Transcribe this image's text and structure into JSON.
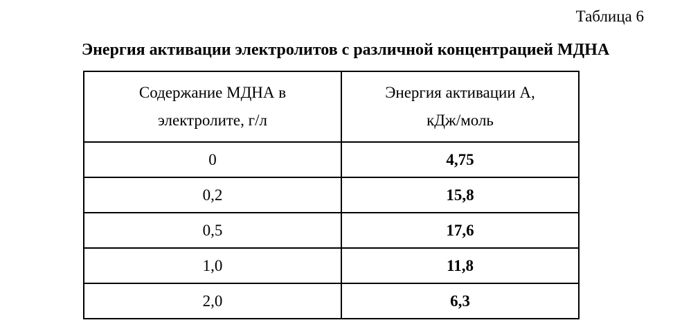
{
  "document": {
    "table_number": "Таблица 6",
    "title": "Энергия активации электролитов с различной концентрацией МДНА"
  },
  "table": {
    "headers": [
      [
        "Содержание МДНА в",
        "электролите, г/л"
      ],
      [
        "Энергия активации А,",
        "кДж/моль"
      ]
    ],
    "rows": [
      [
        "0",
        "4,75"
      ],
      [
        "0,2",
        "15,8"
      ],
      [
        "0,5",
        "17,6"
      ],
      [
        "1,0",
        "11,8"
      ],
      [
        "2,0",
        "6,3"
      ]
    ]
  }
}
